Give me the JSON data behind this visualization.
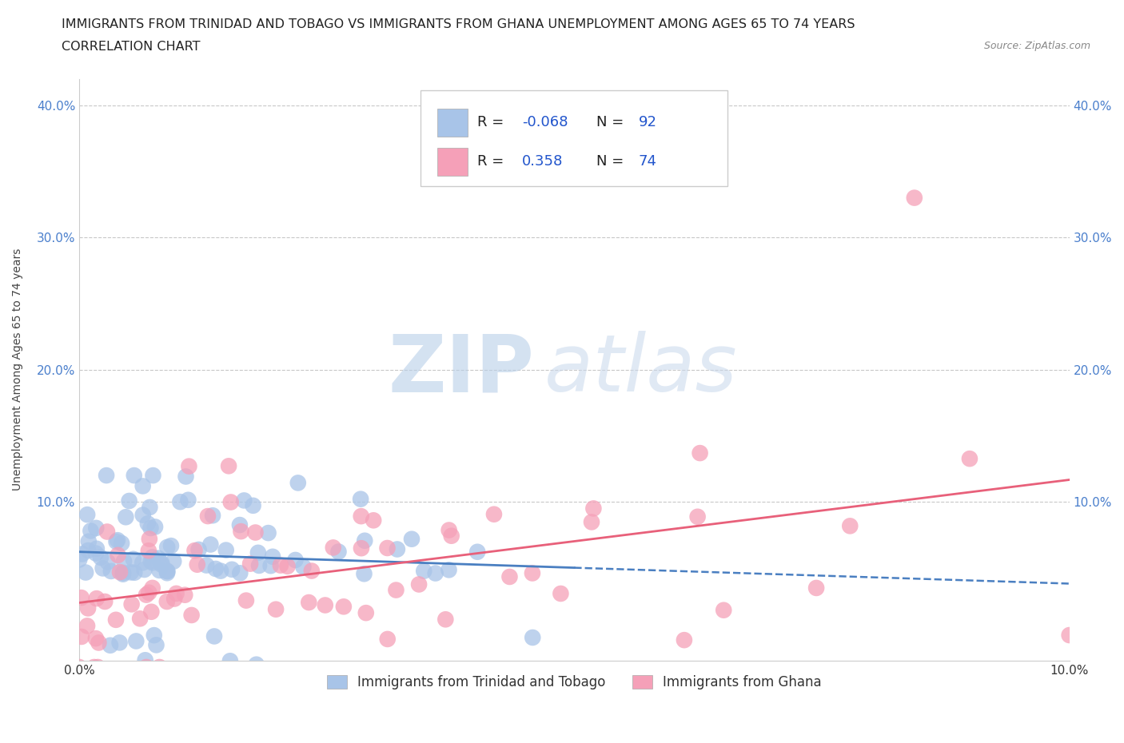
{
  "title_line1": "IMMIGRANTS FROM TRINIDAD AND TOBAGO VS IMMIGRANTS FROM GHANA UNEMPLOYMENT AMONG AGES 65 TO 74 YEARS",
  "title_line2": "CORRELATION CHART",
  "source_text": "Source: ZipAtlas.com",
  "ylabel": "Unemployment Among Ages 65 to 74 years",
  "watermark_zip": "ZIP",
  "watermark_atlas": "atlas",
  "series1_name": "Immigrants from Trinidad and Tobago",
  "series2_name": "Immigrants from Ghana",
  "series1_color": "#a8c4e8",
  "series2_color": "#f5a0b8",
  "series1_line_color": "#4a7fc1",
  "series2_line_color": "#e8607a",
  "series1_R": -0.068,
  "series1_N": 92,
  "series2_R": 0.358,
  "series2_N": 74,
  "xlim": [
    0.0,
    0.1
  ],
  "ylim": [
    -0.02,
    0.42
  ],
  "grid_color": "#c8c8c8",
  "background_color": "#ffffff",
  "title_fontsize": 11.5,
  "axis_label_fontsize": 10,
  "tick_fontsize": 11,
  "legend_fontsize": 13
}
